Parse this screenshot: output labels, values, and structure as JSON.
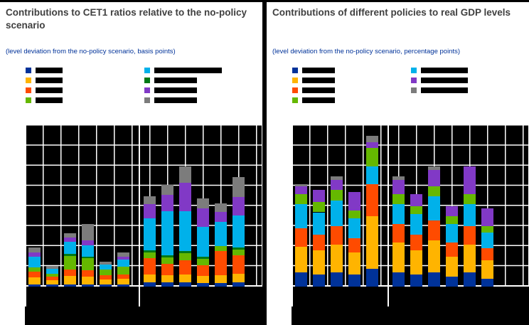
{
  "window": {
    "bg_color": "#000000",
    "panel_bg_color": "#ffffff",
    "plot_bg_color": "#000000",
    "grid_color": "#ffffff",
    "title_color": "#404040",
    "subtitle_color": "#003299"
  },
  "panels": [
    {
      "title": "Contributions to CET1 ratios relative to the no-policy scenario",
      "subtitle": "(level deviation from the no-policy scenario, basis points)",
      "legend": {
        "note": "legend label text is redacted (solid black bars) in the source image",
        "columns": [
          [
            {
              "color": "#003299",
              "label": "",
              "redact_w": 38
            },
            {
              "color": "#ffb400",
              "label": "",
              "redact_w": 38
            },
            {
              "color": "#ff4b00",
              "label": "",
              "redact_w": 38
            },
            {
              "color": "#65b800",
              "label": "",
              "redact_w": 38
            }
          ],
          [
            {
              "color": "#00b1ea",
              "label": "",
              "redact_w": 95
            },
            {
              "color": "#007816",
              "label": "",
              "redact_w": 60
            },
            {
              "color": "#8139c6",
              "label": "",
              "redact_w": 60
            },
            {
              "color": "#7c7c7c",
              "label": "",
              "redact_w": 60
            }
          ]
        ]
      }
    },
    {
      "title": "Contributions of different policies to real GDP levels",
      "subtitle": "(level deviation from the no-policy scenario, percentage points)",
      "legend": {
        "note": "legend label text is redacted (solid black bars) in the source image",
        "columns": [
          [
            {
              "color": "#003299",
              "label": "",
              "redact_w": 46
            },
            {
              "color": "#ffb400",
              "label": "",
              "redact_w": 46
            },
            {
              "color": "#ff4b00",
              "label": "",
              "redact_w": 46
            },
            {
              "color": "#65b800",
              "label": "",
              "redact_w": 46
            }
          ],
          [
            {
              "color": "#00b1ea",
              "label": "",
              "redact_w": 66
            },
            {
              "color": "#8139c6",
              "label": "",
              "redact_w": 66
            },
            {
              "color": "#7c7c7c",
              "label": "",
              "redact_w": 66
            }
          ]
        ]
      }
    }
  ],
  "chart_data": [
    {
      "type": "bar",
      "stacked": true,
      "title": "Contributions to CET1 ratios relative to the no-policy scenario",
      "subtitle": "(level deviation from the no-policy scenario, basis points)",
      "ylabel": "basis points",
      "xlabel": "",
      "grid": true,
      "legend_position": "above",
      "n_bars": 12,
      "groups": [
        6,
        6
      ],
      "value_unit": "gridline rows (1 unit = one horizontal gridline spacing; numeric axis tick labels are not visible in the source image)",
      "ylim": [
        0,
        8
      ],
      "notes": "Two groups of six stacked bars separated by a vertical axis line; x-axis category labels and y-axis tick labels are redacted/not visible (black-on-black) in the source image.",
      "series": [
        {
          "name": "dark-blue",
          "color": "#003299",
          "values": [
            0.12,
            0.1,
            0.12,
            0.12,
            0.1,
            0.1,
            0.2,
            0.2,
            0.22,
            0.18,
            0.18,
            0.2
          ]
        },
        {
          "name": "yellow",
          "color": "#ffb400",
          "values": [
            0.35,
            0.22,
            0.4,
            0.38,
            0.25,
            0.28,
            0.4,
            0.35,
            0.4,
            0.35,
            0.4,
            0.45
          ]
        },
        {
          "name": "orange-red",
          "color": "#ff4b00",
          "values": [
            0.28,
            0.18,
            0.32,
            0.3,
            0.2,
            0.22,
            0.8,
            0.6,
            0.7,
            0.55,
            1.2,
            0.9
          ]
        },
        {
          "name": "green",
          "color": "#65b800",
          "values": [
            0.22,
            0.15,
            0.7,
            0.6,
            0.3,
            0.4,
            0.3,
            0.3,
            0.35,
            0.3,
            0.25,
            0.3
          ]
        },
        {
          "name": "dark-green",
          "color": "#007816",
          "values": [
            0,
            0,
            0.1,
            0.1,
            0,
            0,
            0.1,
            0.1,
            0.1,
            0.1,
            0,
            0.1
          ]
        },
        {
          "name": "cyan",
          "color": "#00b1ea",
          "values": [
            0.5,
            0.25,
            0.6,
            0.55,
            0.25,
            0.35,
            1.6,
            2.2,
            2.0,
            1.5,
            1.2,
            1.6
          ]
        },
        {
          "name": "purple",
          "color": "#8139c6",
          "values": [
            0.22,
            0,
            0.2,
            0.25,
            0,
            0.15,
            0.7,
            0.8,
            1.4,
            0.9,
            0.5,
            0.9
          ]
        },
        {
          "name": "gray",
          "color": "#7c7c7c",
          "values": [
            0.25,
            0.12,
            0.22,
            0.8,
            0.15,
            0.2,
            0.4,
            0.5,
            0.8,
            0.5,
            0.4,
            1.0
          ]
        }
      ]
    },
    {
      "type": "bar",
      "stacked": true,
      "title": "Contributions of different policies to real GDP levels",
      "subtitle": "(level deviation from the no-policy scenario, percentage points)",
      "ylabel": "percentage points",
      "xlabel": "",
      "grid": true,
      "legend_position": "above",
      "n_bars": 11,
      "groups": [
        5,
        6
      ],
      "value_unit": "gridline rows (1 unit = one horizontal gridline spacing; numeric axis tick labels are not visible in the source image)",
      "ylim": [
        0,
        8
      ],
      "notes": "Two groups of stacked bars separated by a vertical axis line; x-axis category labels and y-axis tick labels are redacted/not visible (black-on-black) in the source image.",
      "series": [
        {
          "name": "dark-blue",
          "color": "#003299",
          "values": [
            0.7,
            0.6,
            0.7,
            0.6,
            0.9,
            0.7,
            0.6,
            0.7,
            0.5,
            0.7,
            0.4
          ]
        },
        {
          "name": "yellow",
          "color": "#ffb400",
          "values": [
            1.3,
            1.2,
            1.4,
            1.1,
            2.6,
            1.5,
            1.2,
            1.6,
            1.0,
            1.4,
            0.9
          ]
        },
        {
          "name": "orange-red",
          "color": "#ff4b00",
          "values": [
            0.9,
            0.8,
            0.9,
            0.7,
            1.6,
            0.9,
            0.8,
            1.0,
            0.7,
            0.9,
            0.6
          ]
        },
        {
          "name": "cyan",
          "color": "#00b1ea",
          "values": [
            1.2,
            1.1,
            1.3,
            1.0,
            0.9,
            1.0,
            1.0,
            1.2,
            0.9,
            1.1,
            0.8
          ]
        },
        {
          "name": "green",
          "color": "#65b800",
          "values": [
            0.5,
            0.5,
            0.5,
            0.4,
            0.9,
            0.5,
            0.4,
            0.5,
            0.4,
            0.5,
            0.3
          ]
        },
        {
          "name": "purple",
          "color": "#8139c6",
          "values": [
            0.4,
            0.6,
            0.5,
            0.9,
            0.3,
            0.7,
            0.6,
            0.8,
            0.5,
            1.4,
            0.9
          ]
        },
        {
          "name": "gray",
          "color": "#7c7c7c",
          "values": [
            0.1,
            0,
            0.2,
            0,
            0.3,
            0.2,
            0,
            0.2,
            0,
            0,
            0
          ]
        }
      ]
    }
  ]
}
